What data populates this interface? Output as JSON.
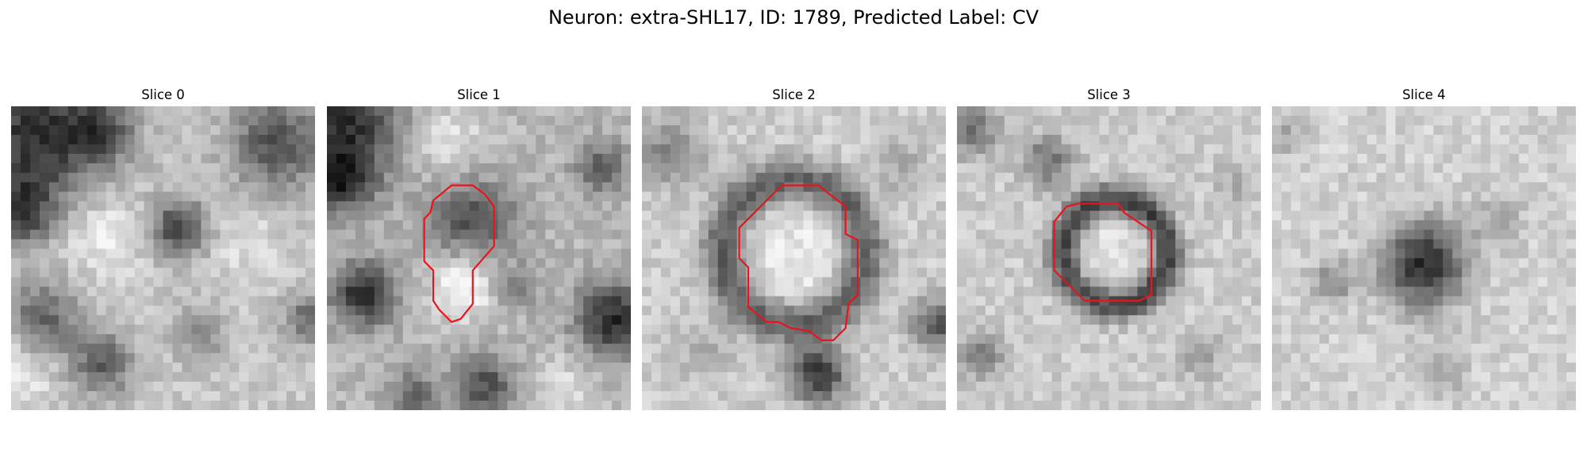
{
  "figure": {
    "title": "Neuron: extra-SHL17, ID: 1789, Predicted Label: CV"
  },
  "panels": [
    {
      "title": "Slice 0",
      "has_contour": false
    },
    {
      "title": "Slice 1",
      "has_contour": true
    },
    {
      "title": "Slice 2",
      "has_contour": true
    },
    {
      "title": "Slice 3",
      "has_contour": true
    },
    {
      "title": "Slice 4",
      "has_contour": false
    }
  ],
  "colors": {
    "contour": "#e8141c",
    "background": "#ffffff"
  },
  "image": {
    "colormap": "grayscale",
    "grid_size": 32
  }
}
